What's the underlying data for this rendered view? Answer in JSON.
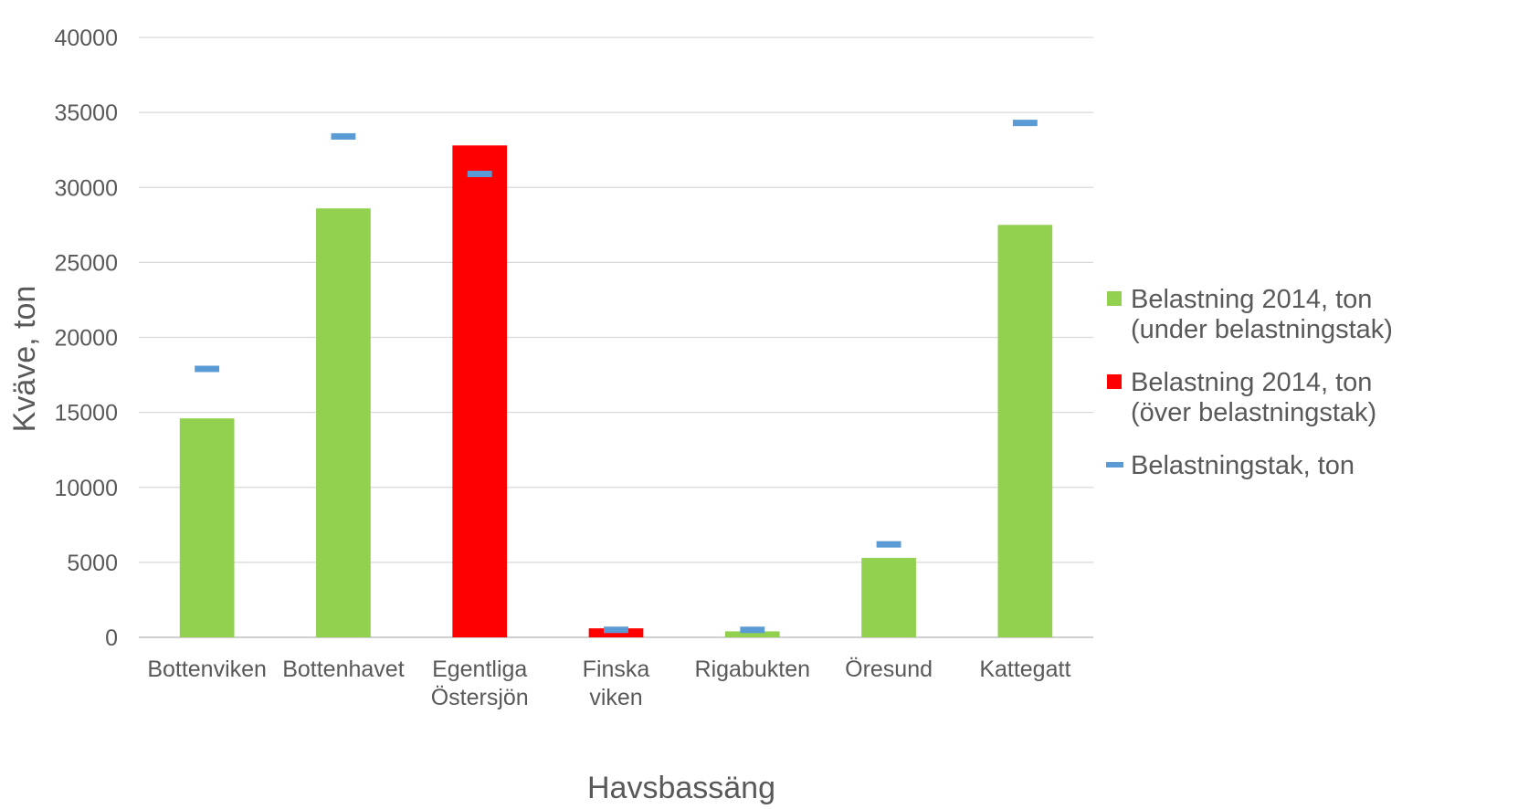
{
  "chart_data": {
    "type": "bar",
    "title": "",
    "xlabel": "Havsbassäng",
    "ylabel": "Kväve, ton",
    "ylim": [
      0,
      40000
    ],
    "yticks": [
      "0",
      "5000",
      "10000",
      "15000",
      "20000",
      "25000",
      "30000",
      "35000",
      "40000"
    ],
    "grid": true,
    "legend_position": "right",
    "categories": [
      [
        "Bottenviken"
      ],
      [
        "Bottenhavet"
      ],
      [
        "Egentliga",
        "Östersjön"
      ],
      [
        "Finska",
        "viken"
      ],
      [
        "Rigabukten"
      ],
      [
        "Öresund"
      ],
      [
        "Kattegatt"
      ]
    ],
    "series": [
      {
        "name": "Belastning 2014, ton (under belastningstak)",
        "legend_lines": [
          "Belastning 2014, ton",
          "(under belastningstak)"
        ],
        "kind": "bar",
        "color": "#92d050",
        "values": [
          14600,
          28600,
          null,
          null,
          400,
          5300,
          27500
        ]
      },
      {
        "name": "Belastning 2014, ton (över belastningstak)",
        "legend_lines": [
          "Belastning 2014, ton",
          "(över belastningstak)"
        ],
        "kind": "bar",
        "color": "#ff0000",
        "values": [
          null,
          null,
          32800,
          600,
          null,
          null,
          null
        ]
      },
      {
        "name": "Belastningstak, ton",
        "legend_lines": [
          "Belastningstak, ton"
        ],
        "kind": "marker",
        "color": "#5b9bd5",
        "values": [
          17900,
          33400,
          30900,
          500,
          500,
          6200,
          34300
        ]
      }
    ]
  }
}
